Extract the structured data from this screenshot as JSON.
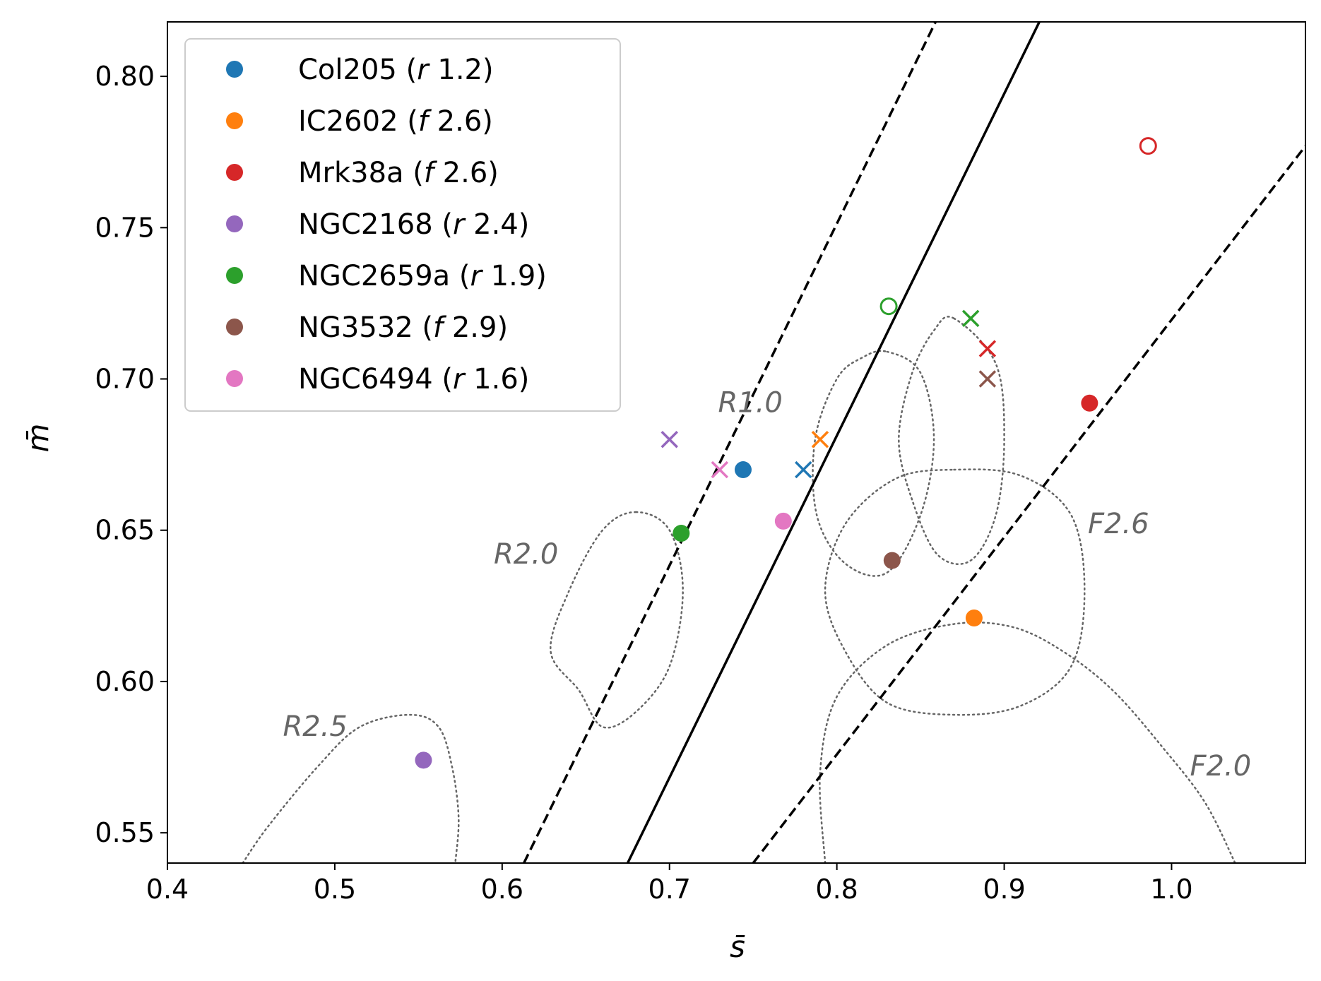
{
  "chart_data": {
    "type": "scatter",
    "xlabel": "s̄",
    "ylabel": "m̄",
    "xlim": [
      0.4,
      1.08
    ],
    "ylim": [
      0.54,
      0.818
    ],
    "xticks": [
      0.4,
      0.5,
      0.6,
      0.7,
      0.8,
      0.9,
      1.0
    ],
    "xtick_labels": [
      "0.4",
      "0.5",
      "0.6",
      "0.7",
      "0.8",
      "0.9",
      "1.0"
    ],
    "yticks": [
      0.55,
      0.6,
      0.65,
      0.7,
      0.75,
      0.8
    ],
    "ytick_labels": [
      "0.55",
      "0.60",
      "0.65",
      "0.70",
      "0.75",
      "0.80"
    ],
    "grid": false,
    "legend_position": "top-left",
    "series": [
      {
        "name": "Col205",
        "kind": "r",
        "val": "1.2",
        "color": "#1f77b4",
        "filled": {
          "x": 0.744,
          "y": 0.67
        },
        "cross": {
          "x": 0.78,
          "y": 0.67
        }
      },
      {
        "name": "IC2602",
        "kind": "f",
        "val": "2.6",
        "color": "#ff7f0e",
        "filled": {
          "x": 0.882,
          "y": 0.621
        },
        "cross": {
          "x": 0.79,
          "y": 0.68
        }
      },
      {
        "name": "Mrk38a",
        "kind": "f",
        "val": "2.6",
        "color": "#d62728",
        "filled": {
          "x": 0.951,
          "y": 0.692
        },
        "cross": {
          "x": 0.89,
          "y": 0.71
        },
        "open": {
          "x": 0.986,
          "y": 0.777
        }
      },
      {
        "name": "NGC2168",
        "kind": "r",
        "val": "2.4",
        "color": "#9467bd",
        "filled": {
          "x": 0.553,
          "y": 0.574
        },
        "cross": {
          "x": 0.7,
          "y": 0.68
        }
      },
      {
        "name": "NGC2659a",
        "kind": "r",
        "val": "1.9",
        "color": "#2ca02c",
        "filled": {
          "x": 0.707,
          "y": 0.649
        },
        "cross": {
          "x": 0.88,
          "y": 0.72
        },
        "open": {
          "x": 0.831,
          "y": 0.724
        }
      },
      {
        "name": "NG3532",
        "kind": "f",
        "val": "2.9",
        "color": "#8c564b",
        "filled": {
          "x": 0.833,
          "y": 0.64
        },
        "cross": {
          "x": 0.89,
          "y": 0.7
        }
      },
      {
        "name": "NGC6494",
        "kind": "r",
        "val": "1.6",
        "color": "#e377c2",
        "filled": {
          "x": 0.768,
          "y": 0.653
        },
        "cross": {
          "x": 0.73,
          "y": 0.67
        }
      }
    ],
    "lines": [
      {
        "name": "center-line",
        "style": "solid",
        "x1": 0.675,
        "y1": 0.54,
        "x2": 0.921,
        "y2": 0.818
      },
      {
        "name": "upper-dashed-line",
        "style": "dashed",
        "x1": 0.613,
        "y1": 0.54,
        "x2": 0.859,
        "y2": 0.818
      },
      {
        "name": "lower-dashed-line",
        "style": "dashed",
        "x1": 0.75,
        "y1": 0.54,
        "x2": 1.08,
        "y2": 0.777
      }
    ],
    "contours": [
      {
        "name": "contour-r1-left",
        "points": [
          [
            0.83,
            0.709
          ],
          [
            0.85,
            0.702
          ],
          [
            0.858,
            0.68
          ],
          [
            0.85,
            0.655
          ],
          [
            0.83,
            0.636
          ],
          [
            0.805,
            0.639
          ],
          [
            0.788,
            0.655
          ],
          [
            0.787,
            0.68
          ],
          [
            0.8,
            0.7
          ],
          [
            0.815,
            0.707
          ]
        ]
      },
      {
        "name": "contour-r1-right",
        "points": [
          [
            0.87,
            0.72
          ],
          [
            0.895,
            0.705
          ],
          [
            0.9,
            0.68
          ],
          [
            0.895,
            0.655
          ],
          [
            0.88,
            0.64
          ],
          [
            0.86,
            0.642
          ],
          [
            0.845,
            0.66
          ],
          [
            0.837,
            0.68
          ],
          [
            0.845,
            0.702
          ],
          [
            0.858,
            0.716
          ]
        ]
      },
      {
        "name": "contour-f26",
        "points": [
          [
            0.87,
            0.67
          ],
          [
            0.91,
            0.668
          ],
          [
            0.94,
            0.655
          ],
          [
            0.948,
            0.63
          ],
          [
            0.94,
            0.605
          ],
          [
            0.91,
            0.592
          ],
          [
            0.87,
            0.589
          ],
          [
            0.83,
            0.593
          ],
          [
            0.805,
            0.61
          ],
          [
            0.793,
            0.63
          ],
          [
            0.805,
            0.652
          ],
          [
            0.835,
            0.667
          ]
        ]
      },
      {
        "name": "contour-f20",
        "points": [
          [
            0.793,
            0.54
          ],
          [
            0.79,
            0.57
          ],
          [
            0.8,
            0.595
          ],
          [
            0.83,
            0.612
          ],
          [
            0.87,
            0.619
          ],
          [
            0.905,
            0.618
          ],
          [
            0.935,
            0.61
          ],
          [
            0.965,
            0.597
          ],
          [
            0.995,
            0.578
          ],
          [
            1.02,
            0.56
          ],
          [
            1.038,
            0.54
          ]
        ]
      },
      {
        "name": "contour-r20",
        "points": [
          [
            0.68,
            0.656
          ],
          [
            0.7,
            0.65
          ],
          [
            0.708,
            0.63
          ],
          [
            0.7,
            0.605
          ],
          [
            0.68,
            0.59
          ],
          [
            0.66,
            0.585
          ],
          [
            0.646,
            0.597
          ],
          [
            0.629,
            0.61
          ],
          [
            0.64,
            0.63
          ],
          [
            0.66,
            0.65
          ]
        ]
      },
      {
        "name": "contour-r25",
        "points": [
          [
            0.445,
            0.54
          ],
          [
            0.46,
            0.552
          ],
          [
            0.49,
            0.572
          ],
          [
            0.515,
            0.585
          ],
          [
            0.545,
            0.589
          ],
          [
            0.562,
            0.585
          ],
          [
            0.57,
            0.572
          ],
          [
            0.574,
            0.555
          ],
          [
            0.572,
            0.54
          ]
        ]
      }
    ],
    "annotations": [
      {
        "text": "R1.0",
        "x": 0.729,
        "y": 0.689
      },
      {
        "text": "F2.6",
        "x": 0.95,
        "y": 0.649
      },
      {
        "text": "R2.0",
        "x": 0.595,
        "y": 0.639
      },
      {
        "text": "R2.5",
        "x": 0.469,
        "y": 0.582
      },
      {
        "text": "F2.0",
        "x": 1.011,
        "y": 0.569
      }
    ]
  }
}
